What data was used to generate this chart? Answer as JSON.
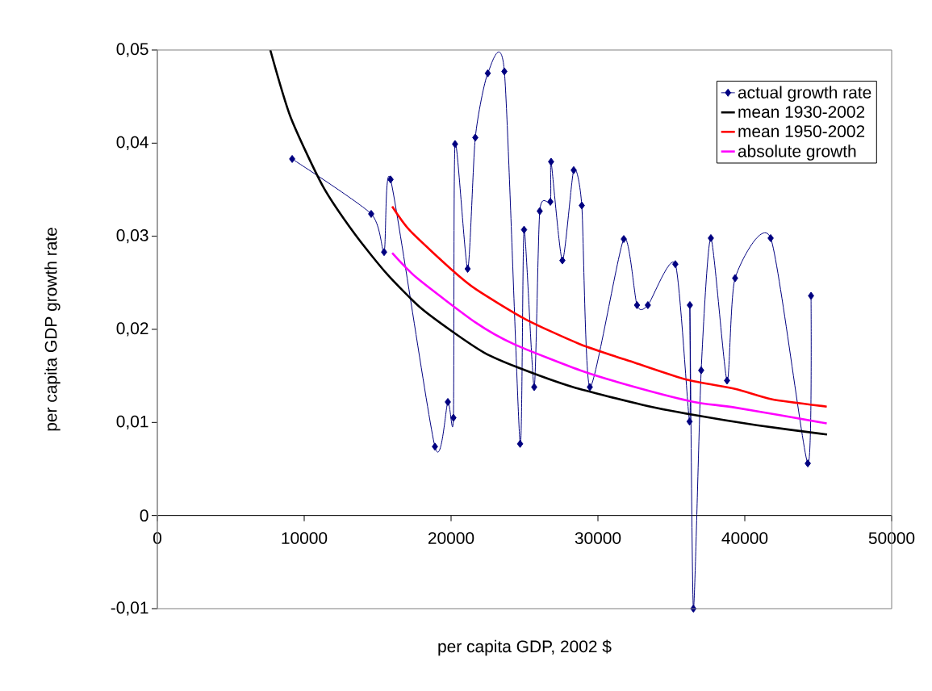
{
  "chart_data": {
    "type": "line",
    "xlabel": "per capita GDP, 2002 $",
    "ylabel": "per capita GDP growth rate",
    "xlim": [
      0,
      50000
    ],
    "ylim": [
      -0.01,
      0.05
    ],
    "xticks": [
      0,
      10000,
      20000,
      30000,
      40000,
      50000
    ],
    "yticks": [
      {
        "value": -0.01,
        "label": "-0,01"
      },
      0,
      {
        "value": 0.01,
        "label": "0,01"
      },
      {
        "value": 0.02,
        "label": "0,02"
      },
      {
        "value": 0.03,
        "label": "0,03"
      },
      {
        "value": 0.04,
        "label": "0,04"
      },
      {
        "value": 0.05,
        "label": "0,05"
      }
    ],
    "legend": "top right",
    "series": [
      {
        "name": "actual growth rate",
        "color": "#000080",
        "marker": "diamond",
        "line_style": "solid",
        "x": [
          9180,
          14560,
          15440,
          15880,
          18900,
          19780,
          20160,
          20270,
          21130,
          21650,
          22500,
          23630,
          24700,
          24970,
          25660,
          26040,
          26760,
          26810,
          27580,
          28350,
          28900,
          29450,
          31760,
          32660,
          33400,
          35270,
          36240,
          36260,
          36500,
          37030,
          37690,
          38790,
          39340,
          41760,
          44290,
          44510
        ],
        "values": [
          0.0383,
          0.0324,
          0.0283,
          0.0361,
          0.0074,
          0.0122,
          0.0105,
          0.0399,
          0.0265,
          0.0406,
          0.0475,
          0.0477,
          0.0077,
          0.0307,
          0.0138,
          0.0327,
          0.0337,
          0.038,
          0.0274,
          0.0371,
          0.0333,
          0.0138,
          0.0297,
          0.0226,
          0.0226,
          0.027,
          0.0101,
          0.0226,
          -0.01,
          0.0156,
          0.0298,
          0.0145,
          0.0255,
          0.0298,
          0.0056,
          0.0236
        ]
      },
      {
        "name": "mean 1930-2002",
        "color": "#000000",
        "x": [
          7690,
          9070,
          11260,
          13460,
          15660,
          17860,
          20050,
          22250,
          24560,
          28300,
          33020,
          36540,
          40820,
          45600
        ],
        "values": [
          0.05,
          0.0428,
          0.0354,
          0.0302,
          0.0259,
          0.0224,
          0.0198,
          0.0175,
          0.0159,
          0.0138,
          0.0119,
          0.0108,
          0.0097,
          0.0087
        ]
      },
      {
        "name": "mean 1950-2002",
        "color": "#ff0000",
        "x": [
          15990,
          17200,
          20050,
          21700,
          25050,
          28790,
          32530,
          36040,
          39340,
          41810,
          45580
        ],
        "values": [
          0.0332,
          0.0306,
          0.0264,
          0.0243,
          0.0211,
          0.0184,
          0.0164,
          0.0146,
          0.0136,
          0.0125,
          0.0117
        ]
      },
      {
        "name": "absolute growth",
        "color": "#ff00ff",
        "x": [
          15990,
          17690,
          21700,
          24290,
          28790,
          32530,
          36540,
          39340,
          45580
        ],
        "values": [
          0.0282,
          0.0255,
          0.0207,
          0.0184,
          0.0156,
          0.0138,
          0.0122,
          0.0116,
          0.0099
        ]
      }
    ]
  }
}
